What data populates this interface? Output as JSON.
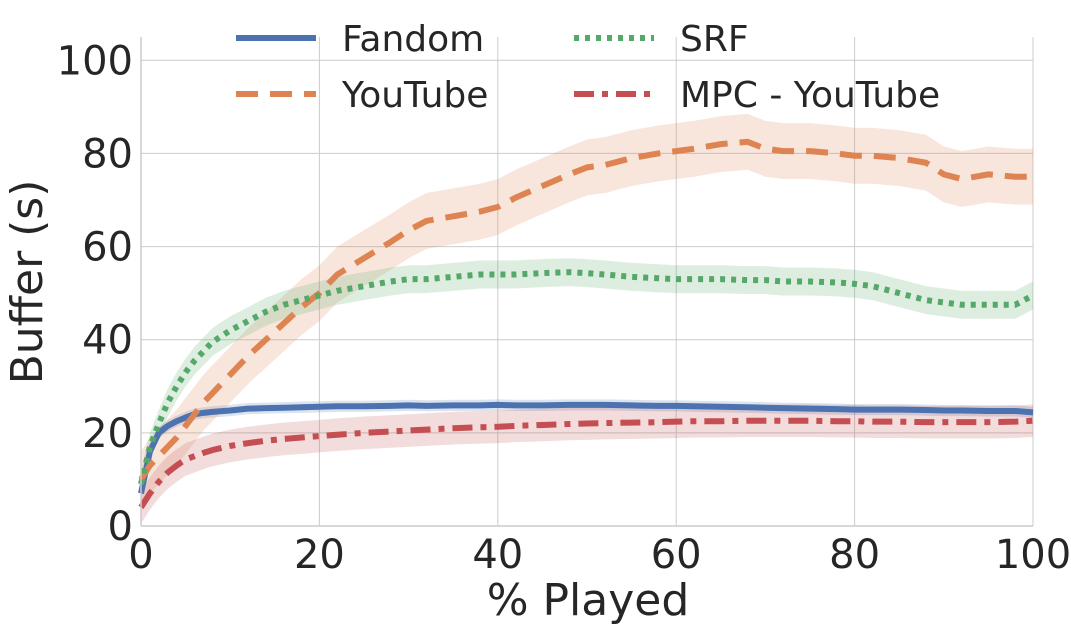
{
  "chart_data": {
    "type": "line",
    "title": "",
    "xlabel": "% Played",
    "ylabel": "Buffer (s)",
    "xlim": [
      0,
      100
    ],
    "ylim": [
      0,
      105
    ],
    "xticks": [
      0,
      20,
      40,
      60,
      80,
      100
    ],
    "yticks": [
      0,
      20,
      40,
      60,
      80,
      100
    ],
    "grid": true,
    "legend_position": "top",
    "x": [
      0,
      1,
      2,
      3,
      4,
      5,
      6,
      7,
      8,
      10,
      12,
      14,
      16,
      18,
      20,
      22,
      25,
      28,
      30,
      32,
      35,
      38,
      40,
      42,
      45,
      48,
      50,
      52,
      55,
      58,
      60,
      62,
      65,
      68,
      70,
      72,
      75,
      78,
      80,
      82,
      85,
      88,
      90,
      92,
      95,
      98,
      100
    ],
    "series": [
      {
        "name": "Fandom",
        "color": "#4c72b0",
        "style": "solid",
        "values": [
          7,
          16,
          20,
          21.5,
          22.5,
          23.3,
          24,
          24.3,
          24.5,
          24.8,
          25.2,
          25.3,
          25.4,
          25.5,
          25.6,
          25.7,
          25.7,
          25.8,
          25.9,
          25.8,
          25.9,
          25.9,
          26,
          25.9,
          25.9,
          26,
          26,
          26,
          25.9,
          25.8,
          25.8,
          25.7,
          25.6,
          25.5,
          25.4,
          25.3,
          25.2,
          25.1,
          25,
          25,
          25,
          24.9,
          24.8,
          24.8,
          24.7,
          24.7,
          24.4
        ],
        "band": 1.2
      },
      {
        "name": "YouTube",
        "color": "#dd8452",
        "style": "dashed",
        "values": [
          10,
          13,
          15,
          17,
          19,
          21.5,
          24,
          26.5,
          28.5,
          32.5,
          36.5,
          40,
          43.5,
          47,
          50,
          54,
          57.5,
          61,
          63.5,
          65.5,
          66.5,
          67.5,
          68.5,
          70.5,
          73,
          75.5,
          77,
          77.5,
          79,
          80,
          80.5,
          81,
          82,
          82.5,
          81,
          80.5,
          80.5,
          80,
          79.5,
          79.5,
          79,
          78,
          75.5,
          74.5,
          75.5,
          75,
          75
        ],
        "band": 6
      },
      {
        "name": "SRF",
        "color": "#55a868",
        "style": "dotted",
        "values": [
          9,
          17,
          22,
          26.5,
          30,
          33,
          35.5,
          37.5,
          39.5,
          42,
          44,
          46,
          47.5,
          48.5,
          49.5,
          50.5,
          51.5,
          52.5,
          53,
          53,
          53.5,
          54,
          54,
          54,
          54.3,
          54.5,
          54.3,
          54,
          53.5,
          53.2,
          53,
          53,
          53,
          52.8,
          52.8,
          52.5,
          52.5,
          52.3,
          52,
          51.5,
          50,
          48.5,
          48,
          47.5,
          47.5,
          47.5,
          49.5
        ],
        "band": 3
      },
      {
        "name": "MPC - YouTube",
        "color": "#c44e52",
        "style": "dashdot",
        "values": [
          4,
          7,
          9.5,
          11.5,
          13,
          14.3,
          15,
          15.7,
          16.3,
          17.2,
          17.8,
          18.3,
          18.7,
          19,
          19.3,
          19.6,
          20,
          20.3,
          20.5,
          20.7,
          21,
          21.2,
          21.3,
          21.5,
          21.7,
          21.9,
          22,
          22.1,
          22.2,
          22.3,
          22.4,
          22.5,
          22.5,
          22.6,
          22.6,
          22.6,
          22.6,
          22.5,
          22.5,
          22.4,
          22.4,
          22.3,
          22.3,
          22.3,
          22.3,
          22.4,
          22.6
        ],
        "band": 3.5
      }
    ]
  }
}
